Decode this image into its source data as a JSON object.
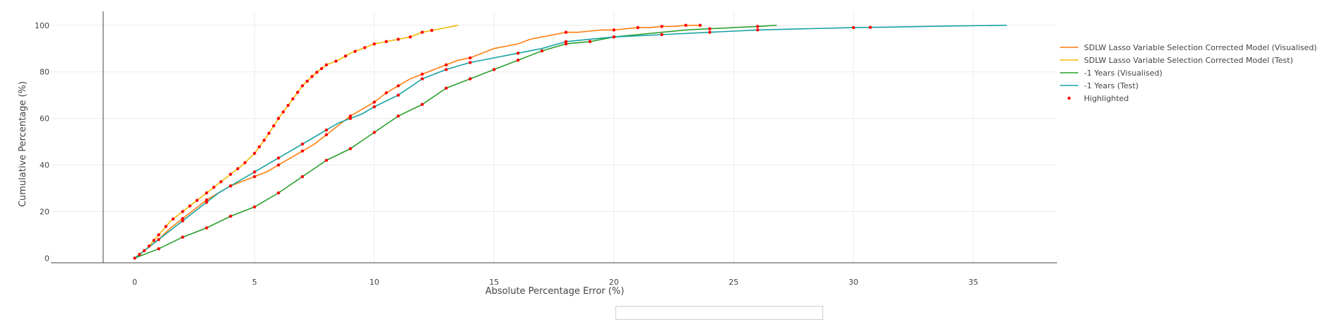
{
  "chart_data": {
    "type": "line",
    "title": "",
    "xlabel": "Absolute Percentage Error (%)",
    "ylabel": "Cumulative Percentage (%)",
    "xlim": [
      -3.5,
      38.5
    ],
    "ylim": [
      -2,
      106
    ],
    "x_ticks": [
      0,
      5,
      10,
      15,
      20,
      25,
      30,
      35
    ],
    "y_ticks": [
      0,
      20,
      40,
      60,
      80,
      100
    ],
    "grid": true,
    "legend_position": "top-right",
    "series": [
      {
        "name": "SDLW Lasso Variable Selection Corrected Model (Visualised)",
        "color": "#ff7f0e",
        "x": [
          0,
          0.5,
          1,
          1.5,
          2,
          2.5,
          3,
          3.5,
          4,
          4.5,
          5,
          5.5,
          6,
          6.5,
          7,
          7.5,
          8,
          8.5,
          9,
          9.5,
          10,
          10.5,
          11,
          11.5,
          12,
          12.5,
          13,
          13.5,
          14,
          14.5,
          15,
          15.5,
          16,
          16.5,
          17,
          17.5,
          18,
          18.5,
          19,
          19.5,
          20,
          20.5,
          21,
          21.5,
          22,
          22.5,
          23,
          23.6
        ],
        "y": [
          0,
          4,
          8,
          13,
          17,
          21,
          25,
          28,
          31,
          33,
          35,
          37,
          40,
          43,
          46,
          49,
          53,
          57,
          61,
          64,
          67,
          71,
          74,
          77,
          79,
          81,
          83,
          85,
          86,
          88,
          90,
          91,
          92,
          94,
          95,
          96,
          97,
          97,
          97.5,
          98,
          98,
          98.5,
          99,
          99,
          99.5,
          99.5,
          100,
          100
        ]
      },
      {
        "name": "SDLW Lasso Variable Selection Corrected Model (Test)",
        "color": "#f5b800",
        "x": [
          0,
          0.5,
          1,
          1.5,
          2,
          2.5,
          3,
          3.5,
          4,
          4.5,
          5,
          5.5,
          6,
          6.5,
          7,
          7.5,
          8,
          8.5,
          9,
          9.5,
          10,
          10.5,
          11,
          11.5,
          12,
          12.5,
          13,
          13.5
        ],
        "y": [
          0,
          4,
          10,
          16,
          20,
          24,
          28,
          32,
          36,
          40,
          45,
          52,
          60,
          67,
          74,
          79,
          83,
          85,
          88,
          90,
          92,
          93,
          94,
          95,
          97,
          98,
          99,
          100
        ]
      },
      {
        "name": "-1 Years (Visualised)",
        "color": "#2ca02c",
        "x": [
          0,
          1,
          2,
          3,
          4,
          5,
          6,
          7,
          8,
          9,
          10,
          11,
          12,
          13,
          14,
          15,
          16,
          17,
          18,
          19,
          20,
          21,
          22,
          23,
          24,
          25,
          26,
          26.8
        ],
        "y": [
          0,
          4,
          9,
          13,
          18,
          22,
          28,
          35,
          42,
          47,
          54,
          61,
          66,
          73,
          77,
          81,
          85,
          89,
          92,
          93,
          95,
          96,
          97,
          98,
          98.5,
          99,
          99.5,
          100
        ]
      },
      {
        "name": "-1 Years (Test)",
        "color": "#17a2a2",
        "x": [
          0,
          0.5,
          1,
          1.5,
          2,
          2.5,
          3,
          3.5,
          4,
          4.5,
          5,
          5.5,
          6,
          6.5,
          7,
          7.5,
          8,
          8.5,
          9,
          9.5,
          10,
          11,
          12,
          13,
          14,
          15,
          16,
          17,
          18,
          19,
          20,
          22,
          24,
          26,
          28,
          30,
          32,
          34,
          36.4
        ],
        "y": [
          0,
          4,
          8,
          12,
          16,
          20,
          24,
          28,
          31,
          34,
          37,
          40,
          43,
          46,
          49,
          52,
          55,
          58,
          60,
          62,
          65,
          70,
          77,
          81,
          84,
          86,
          88,
          90,
          93,
          94,
          95,
          96,
          97,
          98,
          98.5,
          99,
          99.3,
          99.7,
          100
        ]
      }
    ],
    "highlight": {
      "name": "Highlighted",
      "color": "#ff0000",
      "points": [
        {
          "series": 1,
          "x": [
            0,
            0.2,
            0.4,
            0.6,
            0.8,
            1,
            1.3,
            1.6,
            2,
            2.3,
            2.6,
            3,
            3.3,
            3.6,
            4,
            4.3,
            4.6,
            5,
            5.2,
            5.4,
            5.6,
            5.8,
            6,
            6.2,
            6.4,
            6.6,
            6.8,
            7,
            7.2,
            7.4,
            7.6,
            7.8,
            8,
            8.4,
            8.8,
            9.2,
            9.6,
            10,
            10.5,
            11,
            11.5,
            12,
            12.4
          ]
        },
        {
          "series": 0,
          "x": [
            2,
            3,
            4,
            5,
            6,
            7,
            8,
            9,
            10,
            10.5,
            11,
            12,
            13,
            14,
            18,
            20,
            21,
            22,
            23,
            23.6
          ]
        },
        {
          "series": 2,
          "x": [
            1,
            2,
            3,
            4,
            5,
            6,
            7,
            8,
            9,
            10,
            11,
            12,
            13,
            14,
            15,
            16,
            17,
            18,
            19,
            20,
            24,
            26
          ]
        },
        {
          "series": 3,
          "x": [
            1,
            2,
            3,
            4,
            5,
            6,
            7,
            8,
            9,
            10,
            11,
            12,
            13,
            14,
            16,
            18,
            20,
            22,
            24,
            26,
            30,
            30.7
          ]
        }
      ]
    }
  }
}
